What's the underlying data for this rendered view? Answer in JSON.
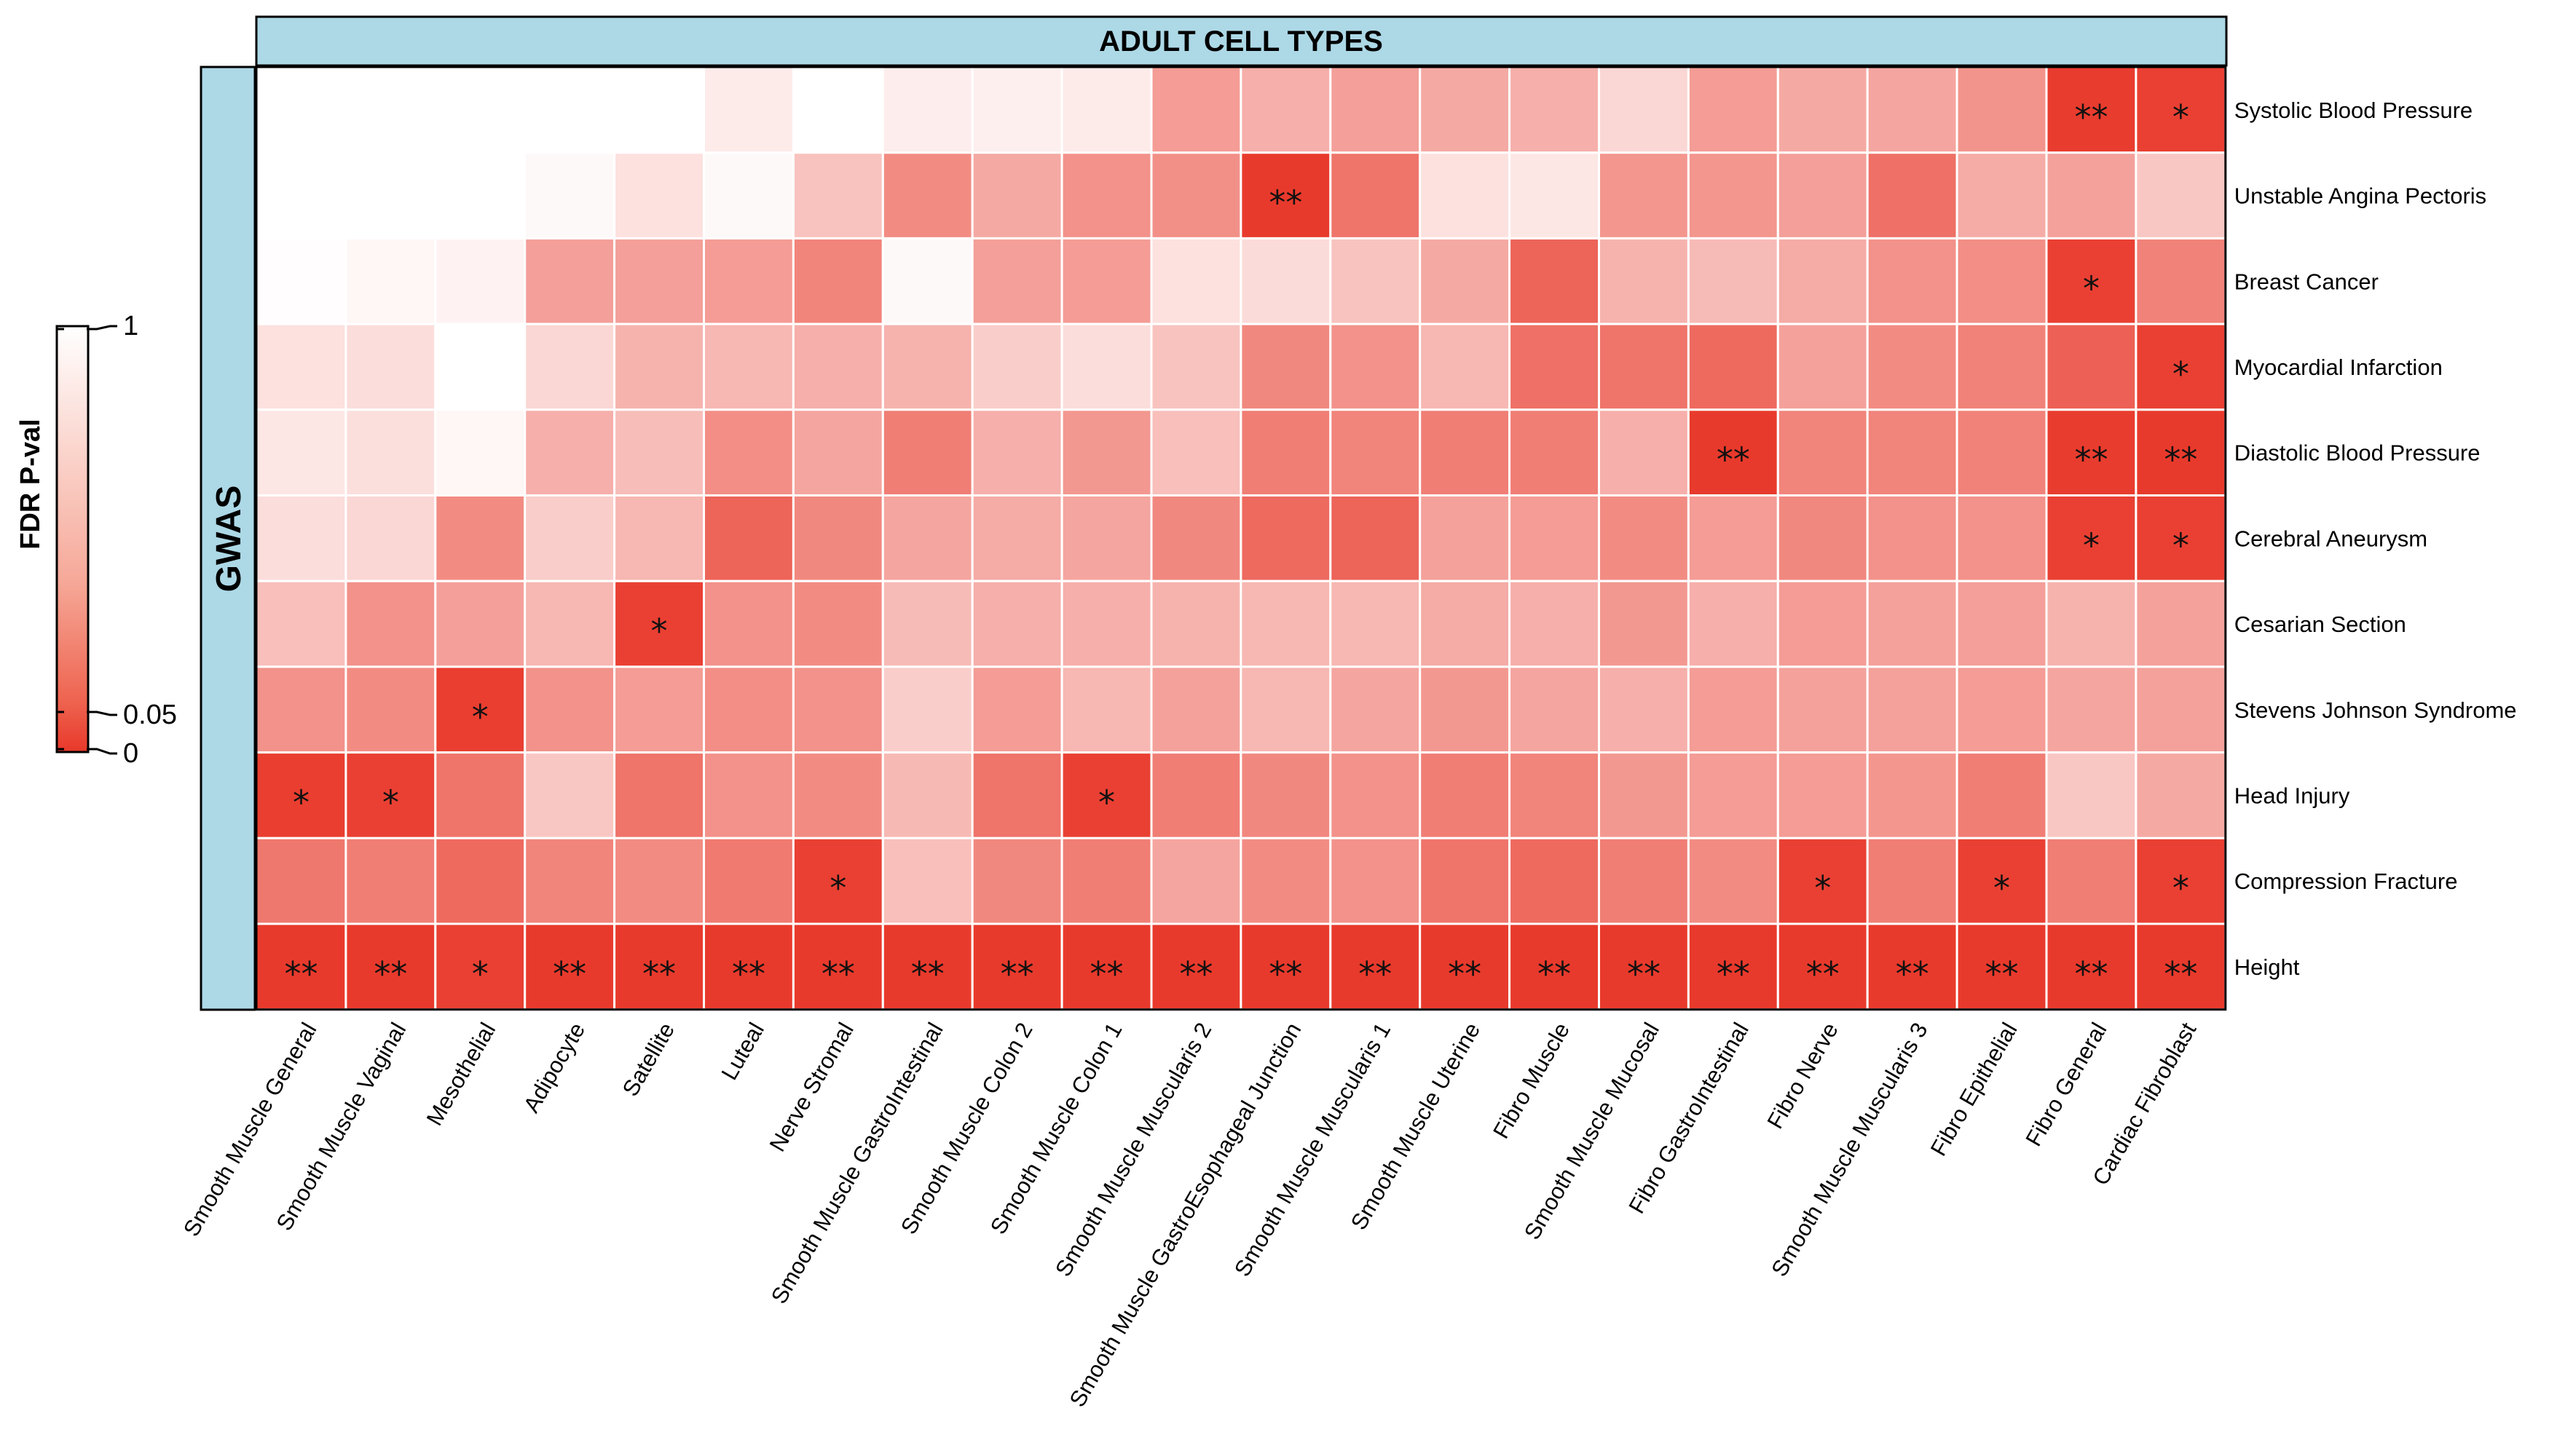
{
  "chart_data": {
    "type": "heatmap",
    "title": "ADULT CELL TYPES",
    "row_strip_label": "GWAS",
    "legend": {
      "title": "FDR P-val",
      "tick_labels": [
        "1",
        "0.05",
        "0"
      ],
      "tick_values": [
        1,
        0.05,
        0
      ],
      "colors": [
        "#ffffff",
        "#e8382a"
      ]
    },
    "rows": [
      "Systolic Blood Pressure",
      "Unstable Angina Pectoris",
      "Breast Cancer",
      "Myocardial Infarction",
      "Diastolic Blood Pressure",
      "Cerebral Aneurysm",
      "Cesarian Section",
      "Stevens Johnson Syndrome",
      "Head Injury",
      "Compression Fracture",
      "Height"
    ],
    "columns": [
      "Smooth Muscle General",
      "Smooth Muscle Vaginal",
      "Mesothelial",
      "Adipocyte",
      "Satellite",
      "Luteal",
      "Nerve Stromal",
      "Smooth Muscle GastroIntestinal",
      "Smooth Muscle Colon 2",
      "Smooth Muscle Colon 1",
      "Smooth Muscle Muscularis 2",
      "Smooth Muscle GastroEsophageal Junction",
      "Smooth Muscle Muscularis 1",
      "Smooth Muscle Uterine",
      "Fibro Muscle",
      "Smooth Muscle Mucosal",
      "Fibro GastroIntestinal",
      "Fibro Nerve",
      "Smooth Muscle Muscularis 3",
      "Fibro Epithelial",
      "Fibro General",
      "Cardiac Fibroblast"
    ],
    "values": [
      [
        1.0,
        1.0,
        1.0,
        1.0,
        1.0,
        0.9,
        1.0,
        0.91,
        0.92,
        0.9,
        0.5,
        0.6,
        0.52,
        0.57,
        0.6,
        0.8,
        0.5,
        0.57,
        0.55,
        0.46,
        0.02,
        0.04
      ],
      [
        1.0,
        1.0,
        1.0,
        0.97,
        0.85,
        0.97,
        0.7,
        0.42,
        0.57,
        0.45,
        0.44,
        0.01,
        0.3,
        0.85,
        0.88,
        0.47,
        0.47,
        0.52,
        0.28,
        0.58,
        0.53,
        0.72
      ],
      [
        0.99,
        0.96,
        0.94,
        0.52,
        0.52,
        0.5,
        0.38,
        0.97,
        0.52,
        0.5,
        0.85,
        0.82,
        0.7,
        0.57,
        0.22,
        0.62,
        0.66,
        0.58,
        0.45,
        0.43,
        0.04,
        0.37
      ],
      [
        0.85,
        0.83,
        1.0,
        0.8,
        0.62,
        0.64,
        0.6,
        0.62,
        0.75,
        0.83,
        0.7,
        0.4,
        0.45,
        0.64,
        0.28,
        0.3,
        0.25,
        0.53,
        0.42,
        0.37,
        0.2,
        0.04
      ],
      [
        0.88,
        0.84,
        0.96,
        0.6,
        0.67,
        0.43,
        0.55,
        0.35,
        0.6,
        0.48,
        0.68,
        0.35,
        0.38,
        0.35,
        0.35,
        0.6,
        0.01,
        0.38,
        0.38,
        0.37,
        0.02,
        0.01
      ],
      [
        0.83,
        0.8,
        0.42,
        0.75,
        0.64,
        0.22,
        0.4,
        0.55,
        0.58,
        0.55,
        0.4,
        0.25,
        0.22,
        0.53,
        0.5,
        0.42,
        0.5,
        0.4,
        0.45,
        0.45,
        0.04,
        0.04
      ],
      [
        0.68,
        0.45,
        0.52,
        0.64,
        0.04,
        0.45,
        0.42,
        0.66,
        0.6,
        0.6,
        0.62,
        0.64,
        0.64,
        0.58,
        0.6,
        0.48,
        0.6,
        0.5,
        0.53,
        0.52,
        0.62,
        0.53
      ],
      [
        0.45,
        0.42,
        0.03,
        0.45,
        0.5,
        0.43,
        0.45,
        0.75,
        0.5,
        0.64,
        0.53,
        0.64,
        0.55,
        0.48,
        0.55,
        0.6,
        0.5,
        0.53,
        0.53,
        0.5,
        0.55,
        0.53
      ],
      [
        0.03,
        0.04,
        0.3,
        0.72,
        0.3,
        0.45,
        0.42,
        0.65,
        0.3,
        0.04,
        0.35,
        0.4,
        0.45,
        0.35,
        0.38,
        0.48,
        0.5,
        0.5,
        0.47,
        0.35,
        0.72,
        0.57
      ],
      [
        0.32,
        0.35,
        0.25,
        0.38,
        0.42,
        0.33,
        0.04,
        0.68,
        0.4,
        0.35,
        0.55,
        0.42,
        0.45,
        0.3,
        0.25,
        0.35,
        0.42,
        0.04,
        0.35,
        0.04,
        0.35,
        0.04
      ],
      [
        0.01,
        0.01,
        0.04,
        0.01,
        0.01,
        0.01,
        0.01,
        0.01,
        0.01,
        0.01,
        0.01,
        0.01,
        0.01,
        0.01,
        0.01,
        0.01,
        0.01,
        0.01,
        0.01,
        0.01,
        0.01,
        0.01
      ]
    ],
    "annotations": [
      [
        "",
        "",
        "",
        "",
        "",
        "",
        "",
        "",
        "",
        "",
        "",
        "",
        "",
        "",
        "",
        "",
        "",
        "",
        "",
        "",
        "**",
        "*"
      ],
      [
        "",
        "",
        "",
        "",
        "",
        "",
        "",
        "",
        "",
        "",
        "",
        "**",
        "",
        "",
        "",
        "",
        "",
        "",
        "",
        "",
        "",
        ""
      ],
      [
        "",
        "",
        "",
        "",
        "",
        "",
        "",
        "",
        "",
        "",
        "",
        "",
        "",
        "",
        "",
        "",
        "",
        "",
        "",
        "",
        "*",
        ""
      ],
      [
        "",
        "",
        "",
        "",
        "",
        "",
        "",
        "",
        "",
        "",
        "",
        "",
        "",
        "",
        "",
        "",
        "",
        "",
        "",
        "",
        "",
        "*"
      ],
      [
        "",
        "",
        "",
        "",
        "",
        "",
        "",
        "",
        "",
        "",
        "",
        "",
        "",
        "",
        "",
        "",
        "**",
        "",
        "",
        "",
        "**",
        "**"
      ],
      [
        "",
        "",
        "",
        "",
        "",
        "",
        "",
        "",
        "",
        "",
        "",
        "",
        "",
        "",
        "",
        "",
        "",
        "",
        "",
        "",
        "*",
        "*"
      ],
      [
        "",
        "",
        "",
        "",
        "*",
        "",
        "",
        "",
        "",
        "",
        "",
        "",
        "",
        "",
        "",
        "",
        "",
        "",
        "",
        "",
        "",
        ""
      ],
      [
        "",
        "",
        "*",
        "",
        "",
        "",
        "",
        "",
        "",
        "",
        "",
        "",
        "",
        "",
        "",
        "",
        "",
        "",
        "",
        "",
        "",
        ""
      ],
      [
        "*",
        "*",
        "",
        "",
        "",
        "",
        "",
        "",
        "",
        "*",
        "",
        "",
        "",
        "",
        "",
        "",
        "",
        "",
        "",
        "",
        "",
        ""
      ],
      [
        "",
        "",
        "",
        "",
        "",
        "",
        "*",
        "",
        "",
        "",
        "",
        "",
        "",
        "",
        "",
        "",
        "",
        "*",
        "",
        "*",
        "",
        "*"
      ],
      [
        "**",
        "**",
        "*",
        "**",
        "**",
        "**",
        "**",
        "**",
        "**",
        "**",
        "**",
        "**",
        "**",
        "**",
        "**",
        "**",
        "**",
        "**",
        "**",
        "**",
        "**",
        "**"
      ]
    ]
  }
}
